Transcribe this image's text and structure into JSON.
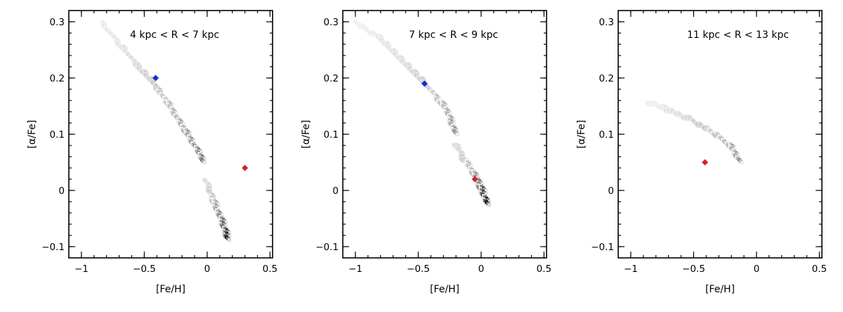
{
  "chart_data": [
    {
      "type": "heatmap",
      "annotation": "4 kpc < R < 7 kpc",
      "xlabel": "[Fe/H]",
      "ylabel": "[α/Fe]",
      "xlim": [
        -1.1,
        0.52
      ],
      "ylim": [
        -0.12,
        0.32
      ],
      "xticks": [
        -1,
        -0.5,
        0,
        0.5
      ],
      "xtick_labels": [
        "−1",
        "−0.5",
        "0",
        "0.5"
      ],
      "yticks": [
        -0.1,
        0,
        0.1,
        0.2,
        0.3
      ],
      "ytick_labels": [
        "−0.1",
        "0",
        "0.1",
        "0.2",
        "0.3"
      ],
      "density_tracks": [
        {
          "x": [
            -0.85,
            -0.7,
            -0.55,
            -0.42,
            -0.32,
            -0.22,
            -0.12,
            -0.04
          ],
          "y": [
            0.3,
            0.26,
            0.22,
            0.19,
            0.155,
            0.12,
            0.085,
            0.055
          ],
          "peak": 0.55
        },
        {
          "x": [
            -0.02,
            0.03,
            0.08,
            0.12,
            0.16
          ],
          "y": [
            0.02,
            -0.01,
            -0.035,
            -0.06,
            -0.085
          ],
          "peak": 0.95
        }
      ],
      "markers": [
        {
          "x": -0.41,
          "y": 0.2,
          "color": "#1a2bd6"
        },
        {
          "x": 0.3,
          "y": 0.04,
          "color": "#d62020"
        }
      ]
    },
    {
      "type": "heatmap",
      "annotation": "7 kpc < R < 9 kpc",
      "xlabel": "[Fe/H]",
      "ylabel": "[α/Fe]",
      "xlim": [
        -1.1,
        0.52
      ],
      "ylim": [
        -0.12,
        0.32
      ],
      "xticks": [
        -1,
        -0.5,
        0,
        0.5
      ],
      "xtick_labels": [
        "−1",
        "−0.5",
        "0",
        "0.5"
      ],
      "yticks": [
        -0.1,
        0,
        0.1,
        0.2,
        0.3
      ],
      "ytick_labels": [
        "−0.1",
        "0",
        "0.1",
        "0.2",
        "0.3"
      ],
      "density_tracks": [
        {
          "x": [
            -1.0,
            -0.8,
            -0.6,
            -0.45,
            -0.35,
            -0.27,
            -0.22
          ],
          "y": [
            0.3,
            0.27,
            0.225,
            0.19,
            0.165,
            0.14,
            0.1
          ],
          "peak": 0.45
        },
        {
          "x": [
            -0.22,
            -0.14,
            -0.08,
            -0.04,
            0.0,
            0.05
          ],
          "y": [
            0.085,
            0.055,
            0.035,
            0.02,
            0.0,
            -0.02
          ],
          "peak": 0.97
        }
      ],
      "markers": [
        {
          "x": -0.45,
          "y": 0.19,
          "color": "#1a2bd6"
        },
        {
          "x": -0.05,
          "y": 0.02,
          "color": "#d62020"
        }
      ]
    },
    {
      "type": "heatmap",
      "annotation": "11 kpc < R < 13 kpc",
      "xlabel": "[Fe/H]",
      "ylabel": "[α/Fe]",
      "xlim": [
        -1.1,
        0.52
      ],
      "ylim": [
        -0.12,
        0.32
      ],
      "xticks": [
        -1,
        -0.5,
        0,
        0.5
      ],
      "xtick_labels": [
        "−1",
        "−0.5",
        "0",
        "0.5"
      ],
      "yticks": [
        -0.1,
        0,
        0.1,
        0.2,
        0.3
      ],
      "ytick_labels": [
        "−0.1",
        "0",
        "0.1",
        "0.2",
        "0.3"
      ],
      "density_tracks": [
        {
          "x": [
            -0.88,
            -0.75,
            -0.6,
            -0.45,
            -0.32,
            -0.22,
            -0.15
          ],
          "y": [
            0.16,
            0.15,
            0.135,
            0.12,
            0.1,
            0.08,
            0.055
          ],
          "peak": 0.45
        }
      ],
      "markers": [
        {
          "x": -0.41,
          "y": 0.05,
          "color": "#d62020"
        }
      ]
    }
  ]
}
